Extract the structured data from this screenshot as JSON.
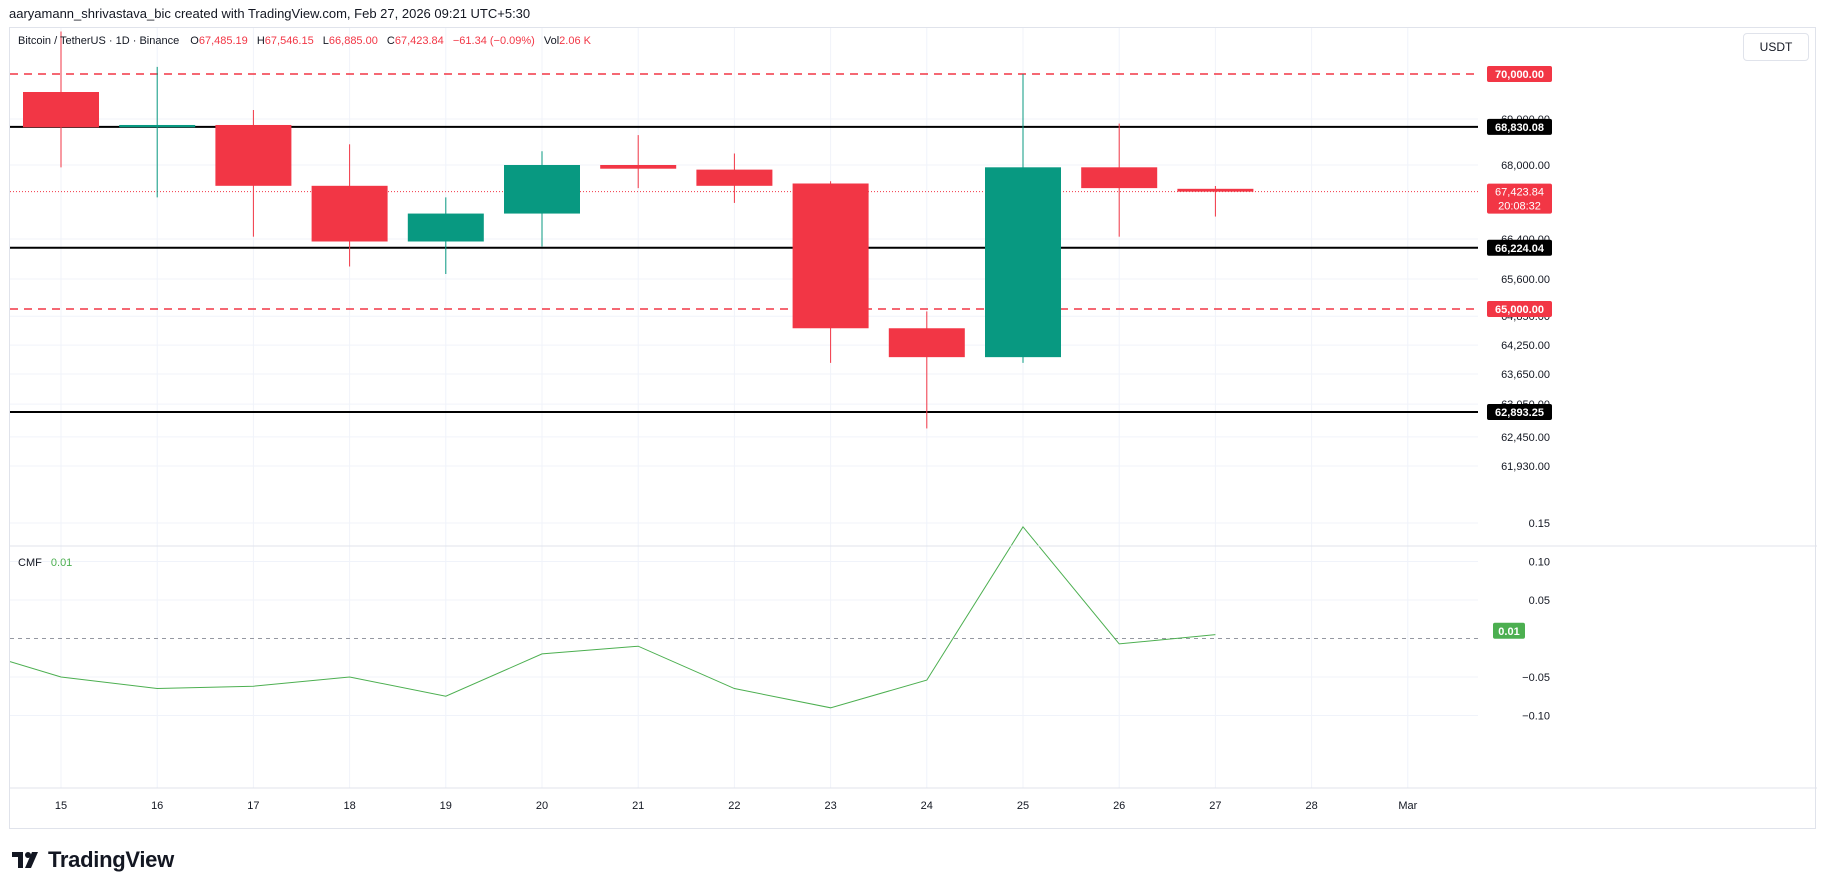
{
  "credit": "aaryamann_shrivastava_bic created with TradingView.com, Feb 27, 2026 09:21 UTC+5:30",
  "brand": "TradingView",
  "currency_button": "USDT",
  "legend": {
    "symbol": "Bitcoin / TetherUS · 1D · Binance",
    "o_label": "O",
    "o_value": "67,485.19",
    "h_label": "H",
    "h_value": "67,546.15",
    "l_label": "L",
    "l_value": "66,885.00",
    "c_label": "C",
    "c_value": "67,423.84",
    "change": "−61.34 (−0.09%)",
    "vol_label": "Vol",
    "vol_value": "2.06 K"
  },
  "indicator": {
    "name": "CMF",
    "value": "0.01"
  },
  "colors": {
    "up": "#089981",
    "down": "#f23645",
    "cmf_line": "#4caf50",
    "support_resistance": "#000000",
    "dashed_level": "#f23645",
    "grid": "#f0f3fa"
  },
  "chart_data": [
    {
      "type": "candlestick",
      "title": "Bitcoin / TetherUS · 1D · Binance",
      "x": [
        "15",
        "16",
        "17",
        "18",
        "19",
        "20",
        "21",
        "22",
        "23",
        "24",
        "25",
        "26",
        "27"
      ],
      "candles": [
        {
          "x": "15",
          "open": 69600,
          "high": 71200,
          "low": 67950,
          "close": 68820
        },
        {
          "x": "16",
          "open": 68820,
          "high": 70200,
          "low": 67300,
          "close": 68870
        },
        {
          "x": "17",
          "open": 68870,
          "high": 69200,
          "low": 66450,
          "close": 67550
        },
        {
          "x": "18",
          "open": 67550,
          "high": 68450,
          "low": 65850,
          "close": 66350
        },
        {
          "x": "19",
          "open": 66350,
          "high": 67300,
          "low": 65700,
          "close": 66950
        },
        {
          "x": "20",
          "open": 66950,
          "high": 68300,
          "low": 66250,
          "close": 68000
        },
        {
          "x": "21",
          "open": 68000,
          "high": 68650,
          "low": 67500,
          "close": 67920
        },
        {
          "x": "22",
          "open": 67900,
          "high": 68250,
          "low": 67180,
          "close": 67550
        },
        {
          "x": "23",
          "open": 67600,
          "high": 67650,
          "low": 63880,
          "close": 64600
        },
        {
          "x": "24",
          "open": 64600,
          "high": 64950,
          "low": 62600,
          "close": 64000
        },
        {
          "x": "25",
          "open": 64000,
          "high": 70000,
          "low": 63880,
          "close": 67950
        },
        {
          "x": "26",
          "open": 67950,
          "high": 68900,
          "low": 66450,
          "close": 67500
        },
        {
          "x": "27",
          "open": 67485.19,
          "high": 67546.15,
          "low": 66885.0,
          "close": 67423.84
        }
      ],
      "x_ticks": [
        "15",
        "16",
        "17",
        "18",
        "19",
        "20",
        "21",
        "22",
        "23",
        "24",
        "25",
        "26",
        "27",
        "28",
        "Mar"
      ],
      "y_ticks": [
        "69,000.00",
        "68,000.00",
        "66,400.00",
        "65,600.00",
        "64,850.00",
        "64,250.00",
        "63,650.00",
        "63,050.00",
        "62,450.00",
        "61,930.00"
      ],
      "y_tick_values": [
        69000,
        68000,
        66400,
        65600,
        64850,
        64250,
        63650,
        63050,
        62450,
        61930
      ],
      "horizontal_levels": [
        {
          "value": 70000,
          "label": "70,000.00",
          "style": "dashed"
        },
        {
          "value": 68830.08,
          "label": "68,830.08",
          "style": "solid"
        },
        {
          "value": 66224.04,
          "label": "66,224.04",
          "style": "solid"
        },
        {
          "value": 65000,
          "label": "65,000.00",
          "style": "dashed"
        },
        {
          "value": 62893.25,
          "label": "62,893.25",
          "style": "solid"
        }
      ],
      "last_price": {
        "value": 67423.84,
        "label": "67,423.84",
        "countdown": "20:08:32"
      },
      "grid": true
    },
    {
      "type": "line",
      "series": [
        {
          "name": "CMF",
          "values": [
            -0.03,
            -0.05,
            -0.065,
            -0.062,
            -0.05,
            -0.075,
            -0.02,
            -0.01,
            -0.065,
            -0.09,
            -0.054,
            0.145,
            -0.007,
            0.005
          ]
        }
      ],
      "x_ticks": [
        "15",
        "16",
        "17",
        "18",
        "19",
        "20",
        "21",
        "22",
        "23",
        "24",
        "25",
        "26",
        "27",
        "28",
        "Mar"
      ],
      "y_ticks": [
        "0.15",
        "0.10",
        "0.05",
        "−0.05",
        "−0.10"
      ],
      "y_tick_values": [
        0.15,
        0.1,
        0.05,
        -0.05,
        -0.1
      ],
      "zero_line": true,
      "current": {
        "value": 0.01,
        "label": "0.01"
      },
      "grid": true
    }
  ]
}
